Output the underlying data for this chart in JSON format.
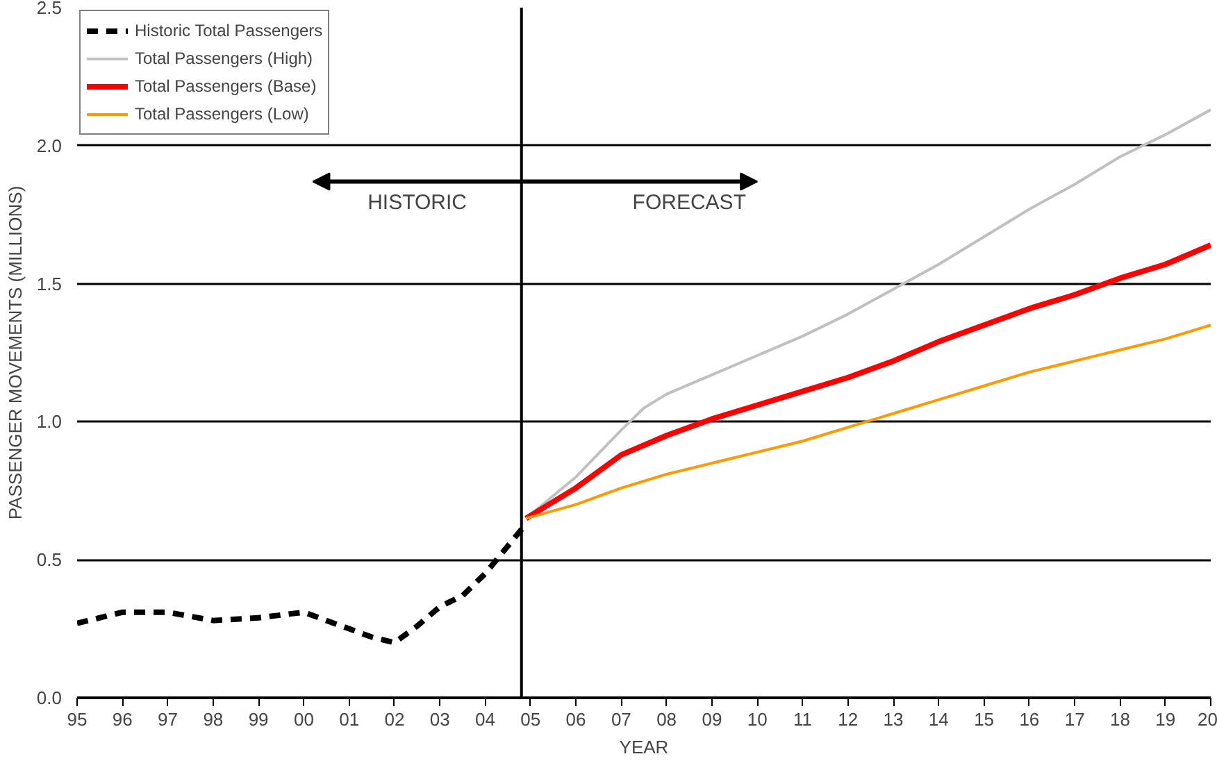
{
  "chart_data": {
    "type": "line",
    "xlabel": "YEAR",
    "ylabel": "PASSENGER MOVEMENTS (MILLIONS)",
    "xlim": [
      1995,
      2020
    ],
    "ylim": [
      0,
      2.5
    ],
    "xticks": [
      {
        "value": 1995,
        "label": "95"
      },
      {
        "value": 1996,
        "label": "96"
      },
      {
        "value": 1997,
        "label": "97"
      },
      {
        "value": 1998,
        "label": "98"
      },
      {
        "value": 1999,
        "label": "99"
      },
      {
        "value": 2000,
        "label": "00"
      },
      {
        "value": 2001,
        "label": "01"
      },
      {
        "value": 2002,
        "label": "02"
      },
      {
        "value": 2003,
        "label": "03"
      },
      {
        "value": 2004,
        "label": "04"
      },
      {
        "value": 2005,
        "label": "05"
      },
      {
        "value": 2006,
        "label": "06"
      },
      {
        "value": 2007,
        "label": "07"
      },
      {
        "value": 2008,
        "label": "08"
      },
      {
        "value": 2009,
        "label": "09"
      },
      {
        "value": 2010,
        "label": "10"
      },
      {
        "value": 2011,
        "label": "11"
      },
      {
        "value": 2012,
        "label": "12"
      },
      {
        "value": 2013,
        "label": "13"
      },
      {
        "value": 2014,
        "label": "14"
      },
      {
        "value": 2015,
        "label": "15"
      },
      {
        "value": 2016,
        "label": "16"
      },
      {
        "value": 2017,
        "label": "17"
      },
      {
        "value": 2018,
        "label": "18"
      },
      {
        "value": 2019,
        "label": "19"
      },
      {
        "value": 2020,
        "label": "20"
      }
    ],
    "yticks": [
      {
        "value": 0,
        "label": "0.0"
      },
      {
        "value": 0.5,
        "label": "0.5"
      },
      {
        "value": 1,
        "label": "1.0"
      },
      {
        "value": 1.5,
        "label": "1.5"
      },
      {
        "value": 2,
        "label": "2.0"
      },
      {
        "value": 2.5,
        "label": "2.5"
      }
    ],
    "grid": "y",
    "legend": "top left",
    "series": [
      {
        "name": "Historic Total Passengers",
        "color": "#000000",
        "line_style": "dashed",
        "x": [
          1995,
          1996,
          1997,
          1998,
          1999,
          2000,
          2001,
          2001.5,
          2002,
          2002.5,
          2003,
          2003.5,
          2004,
          2004.5,
          2004.9
        ],
        "values": [
          0.27,
          0.31,
          0.31,
          0.28,
          0.29,
          0.31,
          0.25,
          0.22,
          0.2,
          0.26,
          0.33,
          0.37,
          0.45,
          0.55,
          0.63
        ]
      },
      {
        "name": "Total Passengers (High)",
        "color": "#c0c0c0",
        "line_style": "solid",
        "x": [
          2004.9,
          2006,
          2007,
          2007.5,
          2008,
          2009,
          2010,
          2011,
          2012,
          2013,
          2014,
          2015,
          2016,
          2017,
          2018,
          2019,
          2020
        ],
        "values": [
          0.65,
          0.8,
          0.97,
          1.05,
          1.1,
          1.17,
          1.24,
          1.31,
          1.39,
          1.48,
          1.57,
          1.67,
          1.77,
          1.86,
          1.96,
          2.04,
          2.13
        ]
      },
      {
        "name": "Total Passengers (Base)",
        "color": "#ff0000",
        "line_style": "solid",
        "x": [
          2004.9,
          2006,
          2007,
          2008,
          2009,
          2010,
          2011,
          2012,
          2013,
          2014,
          2015,
          2016,
          2017,
          2018,
          2019,
          2020
        ],
        "values": [
          0.65,
          0.76,
          0.88,
          0.95,
          1.01,
          1.06,
          1.11,
          1.16,
          1.22,
          1.29,
          1.35,
          1.41,
          1.46,
          1.52,
          1.57,
          1.64
        ]
      },
      {
        "name": "Total Passengers (Low)",
        "color": "#ff9900",
        "line_style": "solid",
        "x": [
          2004.9,
          2006,
          2007,
          2008,
          2009,
          2010,
          2011,
          2012,
          2013,
          2014,
          2015,
          2016,
          2017,
          2018,
          2019,
          2020
        ],
        "values": [
          0.65,
          0.7,
          0.76,
          0.81,
          0.85,
          0.89,
          0.93,
          0.98,
          1.03,
          1.08,
          1.13,
          1.18,
          1.22,
          1.26,
          1.3,
          1.35
        ]
      }
    ],
    "ref_lines": [
      {
        "axis": "x",
        "value": 2004.8,
        "color": "#000000"
      }
    ],
    "annotations": [
      "HISTORIC",
      "FORECAST"
    ]
  }
}
